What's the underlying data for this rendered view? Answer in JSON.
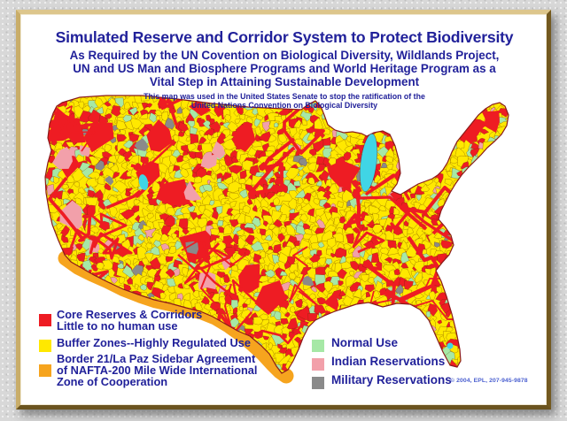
{
  "title": {
    "main": "Simulated Reserve and Corridor System to Protect Biodiversity",
    "sub1": "As Required by the UN Covention on Biological Diversity, Wildlands Project,",
    "sub2": "UN and US Man and Biosphere Programs and World Heritage Program as a",
    "sub3": "Vital Step in Attaining Sustainable Development",
    "note1": "This map was used in the United States Senate to stop the ratification of the",
    "note2": "United Nations Convention on Biological Diversity"
  },
  "legend": {
    "left": [
      {
        "swatch": "red",
        "lines": [
          "Core Reserves & Corridors",
          "Little to no human use"
        ]
      },
      {
        "swatch": "yellow",
        "lines": [
          "Buffer Zones--Highly Regulated Use"
        ]
      },
      {
        "swatch": "orange",
        "lines": [
          "Border 21/La Paz Sidebar Agreement",
          "of NAFTA-200 Mile Wide International",
          "Zone of Cooperation"
        ]
      }
    ],
    "right": [
      {
        "swatch": "green",
        "lines": [
          "Normal Use"
        ]
      },
      {
        "swatch": "pink",
        "lines": [
          "Indian Reservations"
        ]
      },
      {
        "swatch": "gray",
        "lines": [
          "Military Reservations"
        ]
      }
    ]
  },
  "footer": {
    "copyright": "© 2004, EPL, 207-945-9878"
  },
  "colors": {
    "red": "#EE1C23",
    "yellow": "#FFE800",
    "orange": "#F6A41E",
    "green": "#A6E8A6",
    "pink": "#F2A0AA",
    "gray": "#8A8A8A",
    "cyan": "#40D5E5",
    "navy": "#21219A",
    "copyright_blue": "#4A5FD0"
  }
}
